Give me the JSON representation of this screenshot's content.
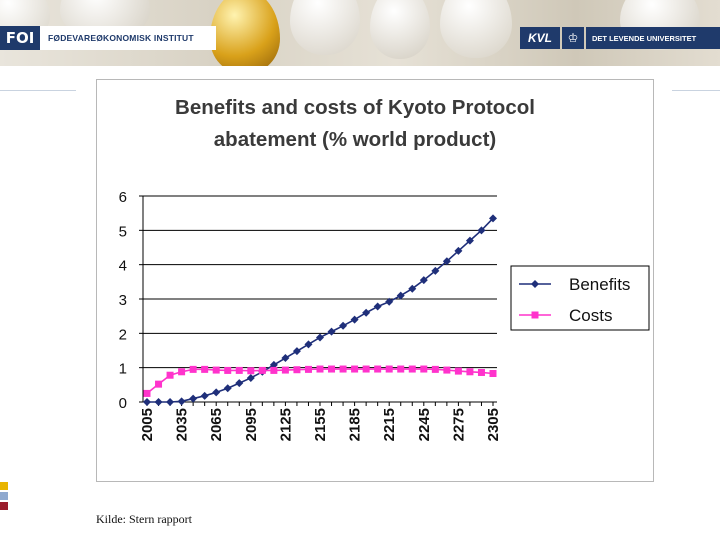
{
  "header": {
    "left_logo_mark": "FOI",
    "left_logo_text": "FØDEVAREØKONOMISK INSTITUT",
    "right_logo_mark": "KVL",
    "right_logo_text": "DET LEVENDE UNIVERSITET"
  },
  "source": "Kilde: Stern rapport",
  "colors": {
    "benefits": "#1f2f7a",
    "costs": "#ff33cc",
    "navy": "#1f3a6b",
    "accent_squares": [
      "#e8b400",
      "#8fa9cf",
      "#9a1d2c"
    ]
  },
  "chart_data": {
    "type": "line",
    "title_lines": [
      "Benefits and costs of Kyoto Protocol",
      "abatement (% world product)"
    ],
    "ylim": [
      0,
      6
    ],
    "yticks": [
      "0",
      "1",
      "2",
      "3",
      "4",
      "5",
      "6"
    ],
    "x_tick_labels": [
      "2005",
      "2035",
      "2065",
      "2095",
      "2125",
      "2155",
      "2185",
      "2215",
      "2245",
      "2275",
      "2305"
    ],
    "x": [
      2005,
      2015,
      2025,
      2035,
      2045,
      2055,
      2065,
      2075,
      2085,
      2095,
      2105,
      2115,
      2125,
      2135,
      2145,
      2155,
      2165,
      2175,
      2185,
      2195,
      2205,
      2215,
      2225,
      2235,
      2245,
      2255,
      2265,
      2275,
      2285,
      2295,
      2305
    ],
    "grid": true,
    "legend_position": "right",
    "series": [
      {
        "name": "Benefits",
        "marker": "diamond",
        "values": [
          0.0,
          0.0,
          0.0,
          0.02,
          0.1,
          0.18,
          0.28,
          0.4,
          0.55,
          0.7,
          0.88,
          1.08,
          1.28,
          1.48,
          1.68,
          1.88,
          2.05,
          2.22,
          2.4,
          2.6,
          2.78,
          2.92,
          3.1,
          3.3,
          3.55,
          3.82,
          4.1,
          4.4,
          4.7,
          5.0,
          5.35
        ]
      },
      {
        "name": "Costs",
        "marker": "square",
        "values": [
          0.25,
          0.52,
          0.78,
          0.88,
          0.95,
          0.95,
          0.93,
          0.92,
          0.92,
          0.91,
          0.92,
          0.92,
          0.93,
          0.94,
          0.95,
          0.96,
          0.96,
          0.96,
          0.96,
          0.96,
          0.96,
          0.96,
          0.96,
          0.96,
          0.96,
          0.95,
          0.93,
          0.9,
          0.88,
          0.86,
          0.83
        ]
      }
    ]
  }
}
